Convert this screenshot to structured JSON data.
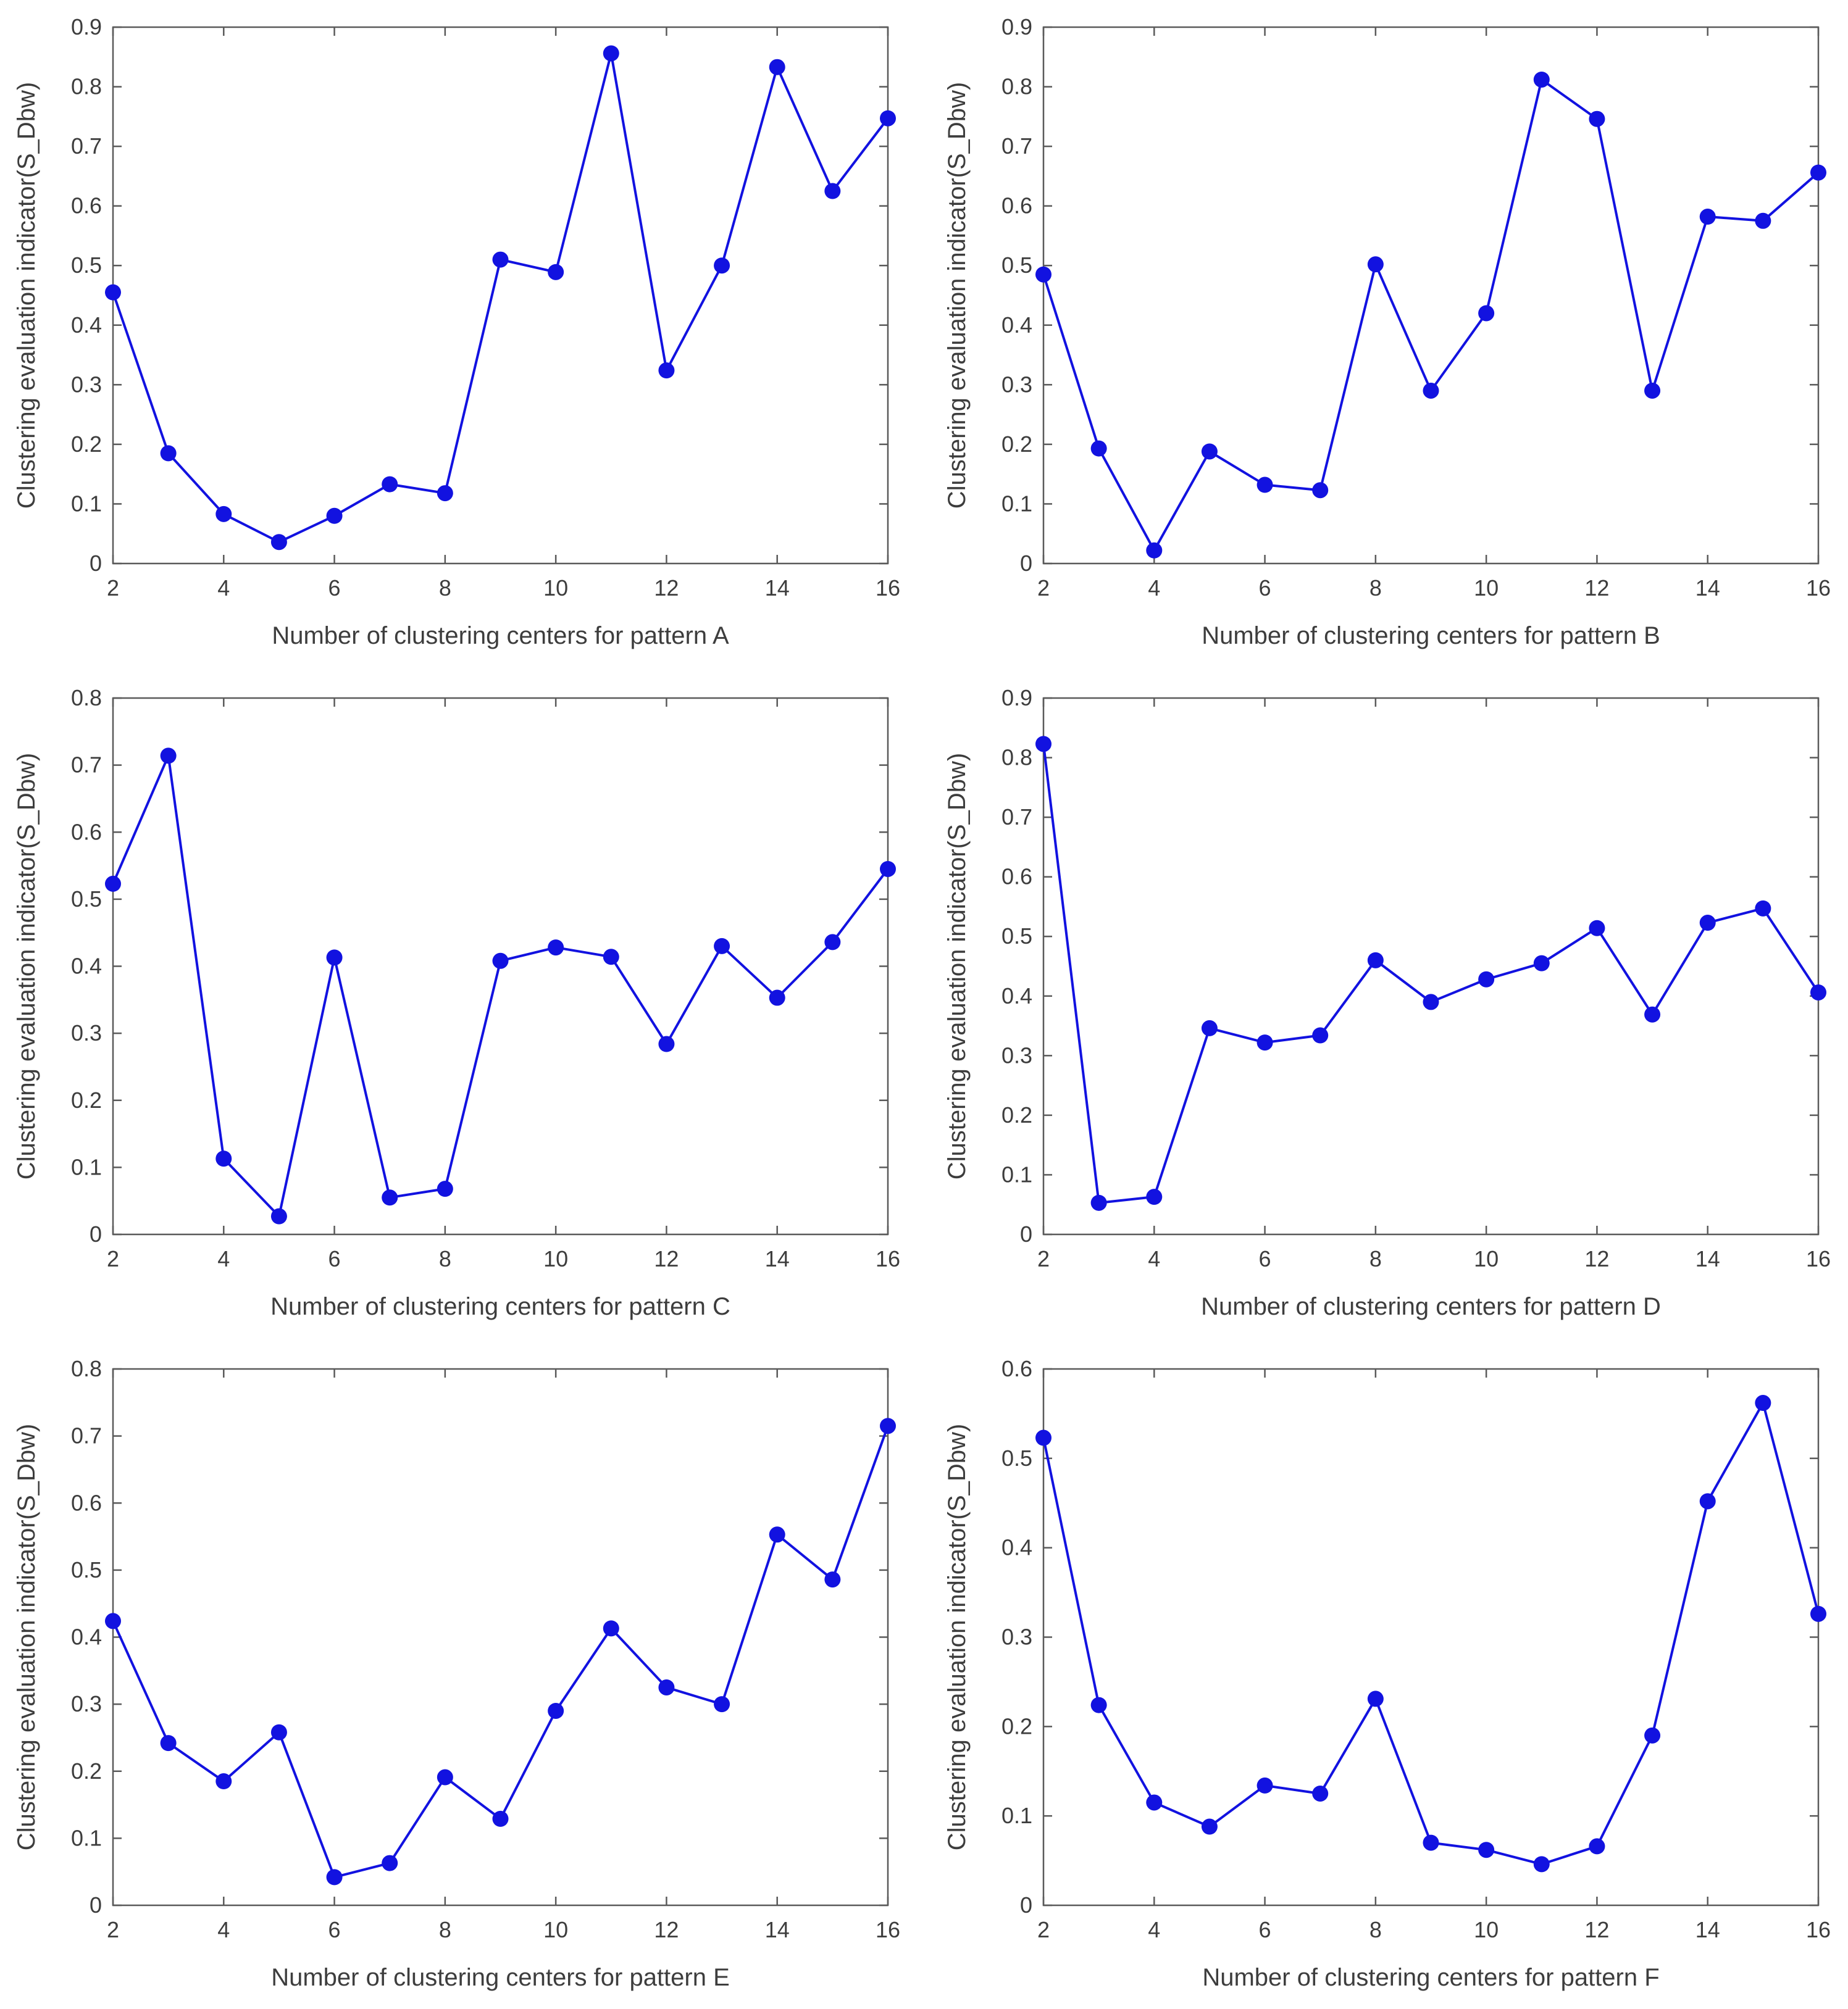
{
  "figure": {
    "background": "#ffffff",
    "layout": "2x3-grid",
    "grid_on": false,
    "legend": "none"
  },
  "style": {
    "line_color": "#1212e0",
    "marker_color": "#1212e0",
    "axis_color": "#5a5a5a",
    "text_color": "#3d3d3d",
    "marker_radius": 13,
    "line_width": 4,
    "tick_length": 14,
    "tick_font_size": 36,
    "label_font_size": 40
  },
  "chart_data": [
    {
      "type": "line",
      "id": "pattern-a",
      "title": "",
      "xlabel": "Number of clustering centers for pattern A",
      "ylabel": "Clustering evaluation indicator(S_Dbw)",
      "xlim": [
        2,
        16
      ],
      "ylim": [
        0,
        0.9
      ],
      "xticks": [
        2,
        4,
        6,
        8,
        10,
        12,
        14,
        16
      ],
      "yticks": [
        0,
        0.1,
        0.2,
        0.3,
        0.4,
        0.5,
        0.6,
        0.7,
        0.8,
        0.9
      ],
      "x": [
        2,
        3,
        4,
        5,
        6,
        7,
        8,
        9,
        10,
        11,
        12,
        13,
        14,
        15,
        16
      ],
      "values": [
        0.455,
        0.185,
        0.083,
        0.036,
        0.08,
        0.133,
        0.118,
        0.51,
        0.489,
        0.856,
        0.324,
        0.5,
        0.833,
        0.625,
        0.747
      ]
    },
    {
      "type": "line",
      "id": "pattern-b",
      "title": "",
      "xlabel": "Number of clustering centers for pattern B",
      "ylabel": "Clustering evaluation indicator(S_Dbw)",
      "xlim": [
        2,
        16
      ],
      "ylim": [
        0,
        0.9
      ],
      "xticks": [
        2,
        4,
        6,
        8,
        10,
        12,
        14,
        16
      ],
      "yticks": [
        0,
        0.1,
        0.2,
        0.3,
        0.4,
        0.5,
        0.6,
        0.7,
        0.8,
        0.9
      ],
      "x": [
        2,
        3,
        4,
        5,
        6,
        7,
        8,
        9,
        10,
        11,
        12,
        13,
        14,
        15,
        16
      ],
      "values": [
        0.485,
        0.193,
        0.022,
        0.188,
        0.132,
        0.123,
        0.502,
        0.29,
        0.42,
        0.812,
        0.746,
        0.29,
        0.582,
        0.575,
        0.656
      ]
    },
    {
      "type": "line",
      "id": "pattern-c",
      "title": "",
      "xlabel": "Number of clustering centers for pattern C",
      "ylabel": "Clustering evaluation indicator(S_Dbw)",
      "xlim": [
        2,
        16
      ],
      "ylim": [
        0,
        0.8
      ],
      "xticks": [
        2,
        4,
        6,
        8,
        10,
        12,
        14,
        16
      ],
      "yticks": [
        0,
        0.1,
        0.2,
        0.3,
        0.4,
        0.5,
        0.6,
        0.7,
        0.8
      ],
      "x": [
        2,
        3,
        4,
        5,
        6,
        7,
        8,
        9,
        10,
        11,
        12,
        13,
        14,
        15,
        16
      ],
      "values": [
        0.523,
        0.714,
        0.113,
        0.027,
        0.413,
        0.055,
        0.068,
        0.408,
        0.428,
        0.414,
        0.284,
        0.43,
        0.353,
        0.436,
        0.545
      ]
    },
    {
      "type": "line",
      "id": "pattern-d",
      "title": "",
      "xlabel": "Number of clustering centers for pattern D",
      "ylabel": "Clustering evaluation indicator(S_Dbw)",
      "xlim": [
        2,
        16
      ],
      "ylim": [
        0,
        0.9
      ],
      "xticks": [
        2,
        4,
        6,
        8,
        10,
        12,
        14,
        16
      ],
      "yticks": [
        0,
        0.1,
        0.2,
        0.3,
        0.4,
        0.5,
        0.6,
        0.7,
        0.8,
        0.9
      ],
      "x": [
        2,
        3,
        4,
        5,
        6,
        7,
        8,
        9,
        10,
        11,
        12,
        13,
        14,
        15,
        16
      ],
      "values": [
        0.823,
        0.053,
        0.063,
        0.346,
        0.322,
        0.334,
        0.46,
        0.39,
        0.428,
        0.455,
        0.514,
        0.369,
        0.523,
        0.547,
        0.406
      ]
    },
    {
      "type": "line",
      "id": "pattern-e",
      "title": "",
      "xlabel": "Number of clustering centers for pattern E",
      "ylabel": "Clustering evaluation indicator(S_Dbw)",
      "xlim": [
        2,
        16
      ],
      "ylim": [
        0,
        0.8
      ],
      "xticks": [
        2,
        4,
        6,
        8,
        10,
        12,
        14,
        16
      ],
      "yticks": [
        0,
        0.1,
        0.2,
        0.3,
        0.4,
        0.5,
        0.6,
        0.7,
        0.8
      ],
      "x": [
        2,
        3,
        4,
        5,
        6,
        7,
        8,
        9,
        10,
        11,
        12,
        13,
        14,
        15,
        16
      ],
      "values": [
        0.424,
        0.242,
        0.185,
        0.258,
        0.042,
        0.063,
        0.191,
        0.129,
        0.29,
        0.413,
        0.325,
        0.3,
        0.553,
        0.486,
        0.715
      ]
    },
    {
      "type": "line",
      "id": "pattern-f",
      "title": "",
      "xlabel": "Number of clustering centers for pattern F",
      "ylabel": "Clustering evaluation indicator(S_Dbw)",
      "xlim": [
        2,
        16
      ],
      "ylim": [
        0,
        0.6
      ],
      "xticks": [
        2,
        4,
        6,
        8,
        10,
        12,
        14,
        16
      ],
      "yticks": [
        0,
        0.1,
        0.2,
        0.3,
        0.4,
        0.5,
        0.6
      ],
      "x": [
        2,
        3,
        4,
        5,
        6,
        7,
        8,
        9,
        10,
        11,
        12,
        13,
        14,
        15,
        16
      ],
      "values": [
        0.523,
        0.224,
        0.115,
        0.088,
        0.134,
        0.125,
        0.231,
        0.07,
        0.062,
        0.046,
        0.066,
        0.19,
        0.452,
        0.562,
        0.326
      ]
    }
  ]
}
